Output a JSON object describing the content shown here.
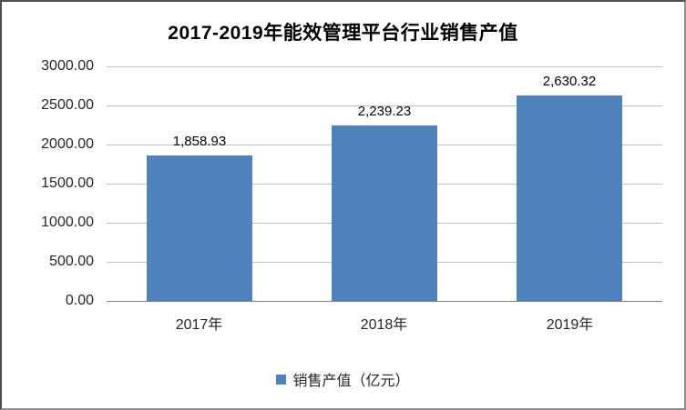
{
  "frame": {
    "background": "#ffffff",
    "border_color": "#6e6e6e"
  },
  "chart_data": {
    "type": "bar",
    "title": "2017-2019年能效管理平台行业销售产值",
    "categories": [
      "2017年",
      "2018年",
      "2019年"
    ],
    "series": [
      {
        "name": "销售产值（亿元）",
        "values": [
          1858.93,
          2239.23,
          2630.32
        ],
        "labels": [
          "1,858.93",
          "2,239.23",
          "2,630.32"
        ],
        "color": "#4F81BD"
      }
    ],
    "xlabel": "",
    "ylabel": "",
    "ylim": [
      0,
      3000
    ],
    "ytick_step": 500,
    "yticks": [
      "3000.00",
      "2500.00",
      "2000.00",
      "1500.00",
      "1000.00",
      "500.00",
      "0.00"
    ],
    "grid": true,
    "gridline_color": "#bfbfbf",
    "axis_line_color": "#808080",
    "legend_position": "bottom",
    "legend": [
      "销售产值（亿元）"
    ]
  }
}
